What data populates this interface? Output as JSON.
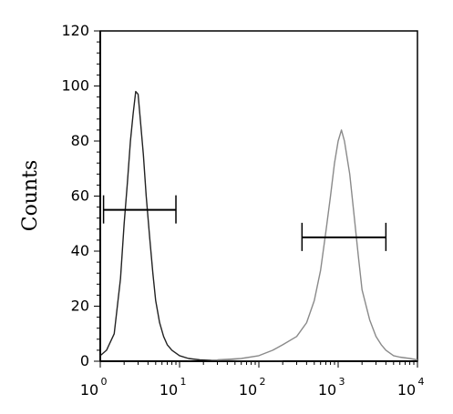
{
  "chart_data": {
    "type": "line",
    "title": "",
    "xlabel": "",
    "ylabel": "Counts",
    "x_scale": "log",
    "xlim": [
      1,
      10000
    ],
    "ylim": [
      0,
      120
    ],
    "y_ticks": [
      0,
      20,
      40,
      60,
      80,
      100,
      120
    ],
    "y_tick_labels": [
      "0",
      "20",
      "40",
      "60",
      "80",
      "100",
      "120"
    ],
    "x_ticks": [
      1,
      10,
      100,
      1000,
      10000
    ],
    "x_tick_labels": [
      {
        "base": "10",
        "exp": "0"
      },
      {
        "base": "10",
        "exp": "1"
      },
      {
        "base": "10",
        "exp": "2"
      },
      {
        "base": "10",
        "exp": "3"
      },
      {
        "base": "10",
        "exp": "4"
      }
    ],
    "grid": false,
    "legend": "none",
    "series": [
      {
        "color": "#222222",
        "x": [
          1,
          1.2,
          1.5,
          1.8,
          2,
          2.2,
          2.4,
          2.6,
          2.8,
          3,
          3.2,
          3.5,
          3.8,
          4.2,
          4.6,
          5,
          5.6,
          6.3,
          7,
          8,
          10,
          13,
          18,
          25,
          40,
          60,
          100,
          200
        ],
        "y": [
          2,
          4,
          10,
          30,
          50,
          65,
          80,
          90,
          98,
          97,
          88,
          75,
          60,
          45,
          32,
          22,
          14,
          9,
          6,
          4,
          2,
          1,
          0.5,
          0.3,
          0.2,
          0.1,
          0.1,
          0
        ]
      },
      {
        "color": "#8a8a8a",
        "x": [
          30,
          60,
          100,
          150,
          200,
          300,
          400,
          500,
          600,
          700,
          800,
          900,
          1000,
          1100,
          1200,
          1400,
          1600,
          1800,
          2000,
          2500,
          3000,
          3500,
          4000,
          5000,
          6000,
          8000,
          10000
        ],
        "y": [
          0.5,
          1,
          2,
          4,
          6,
          9,
          14,
          22,
          33,
          47,
          60,
          72,
          80,
          84,
          80,
          68,
          52,
          38,
          26,
          15,
          9,
          6,
          4,
          2,
          1.5,
          1,
          0.5
        ]
      }
    ],
    "markers": [
      {
        "x1": 1.1,
        "x2": 9,
        "y": 55
      },
      {
        "x1": 350,
        "x2": 4000,
        "y": 45
      }
    ]
  }
}
